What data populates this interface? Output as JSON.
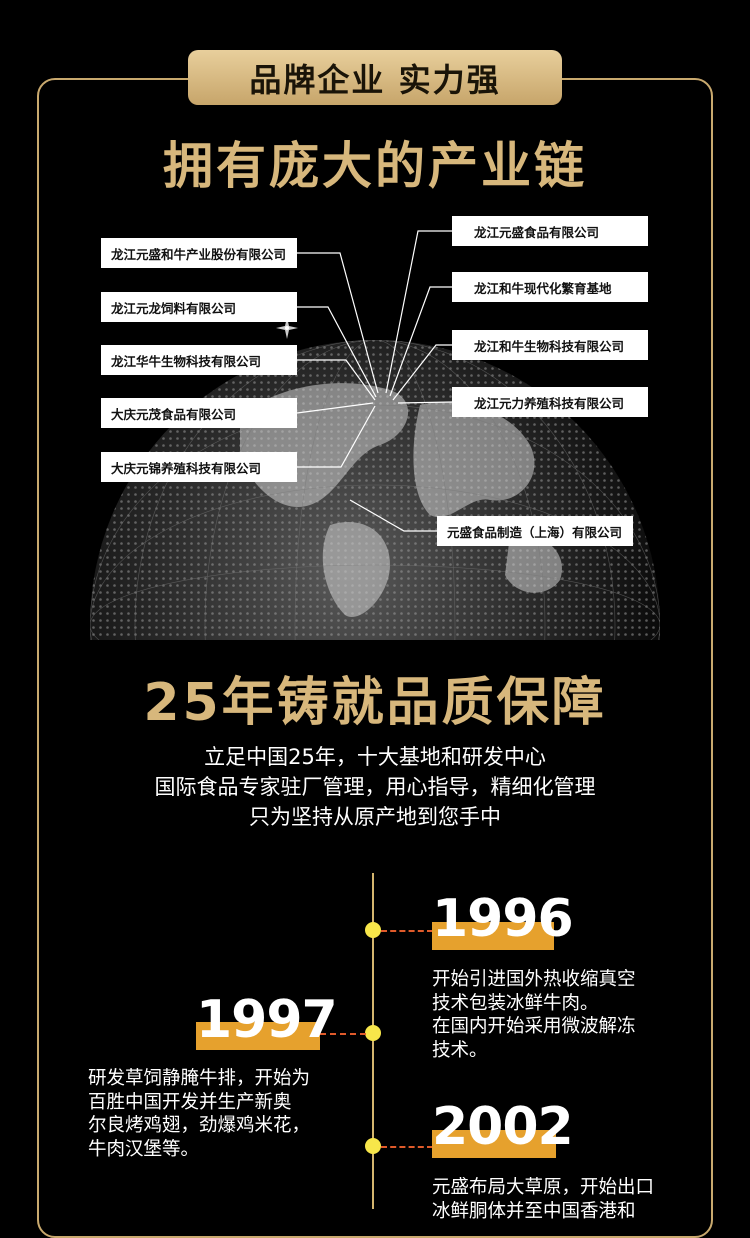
{
  "banner": "品牌企业 实力强",
  "title_chain": "拥有庞大的产业链",
  "companies_left": [
    "龙江元盛和牛产业股份有限公司",
    "龙江元龙饲料有限公司",
    "龙江华牛生物科技有限公司",
    "大庆元茂食品有限公司",
    "大庆元锦养殖科技有限公司"
  ],
  "companies_right": [
    "龙江元盛食品有限公司",
    "龙江和牛现代化繁育基地",
    "龙江和牛生物科技有限公司",
    "龙江元力养殖科技有限公司",
    "元盛食品制造（上海）有限公司"
  ],
  "title_quality": "25年铸就品质保障",
  "intro_lines": [
    "立足中国25年，十大基地和研发中心",
    "国际食品专家驻厂管理，用心指导，精细化管理",
    "只为坚持从原产地到您手中"
  ],
  "timeline": [
    {
      "year": "1996",
      "lines": [
        "开始引进国外热收缩真空",
        "技术包装冰鲜牛肉。",
        "在国内开始采用微波解冻",
        "技术。"
      ]
    },
    {
      "year": "1997",
      "lines": [
        "研发草饲静腌牛排，开始为",
        "百胜中国开发并生产新奥",
        "尔良烤鸡翅，劲爆鸡米花，",
        "牛肉汉堡等。"
      ]
    },
    {
      "year": "2002",
      "lines": [
        "元盛布局大草原，开始出口",
        "冰鲜胴体并至中国香港和"
      ]
    }
  ],
  "colors": {
    "gold": "#d7b77c",
    "accent_bar": "#e6a12d",
    "dot": "#f7e64a"
  }
}
